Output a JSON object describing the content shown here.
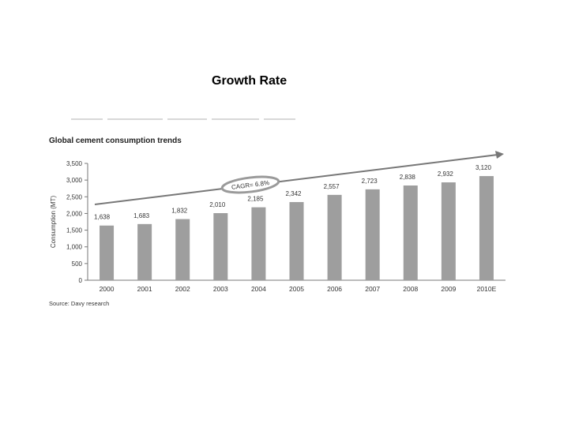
{
  "slide": {
    "title": "Growth Rate"
  },
  "colors": {
    "bar": "#9e9e9e",
    "axis": "#777777",
    "text": "#333333",
    "arrow": "#777777",
    "badge": "#9a9a9a"
  },
  "chart_data": {
    "type": "bar",
    "title": "Global cement consumption trends",
    "ylabel": "Consumption (MT)",
    "xlabel": "",
    "ylim": [
      0,
      3500
    ],
    "yticks": [
      0,
      500,
      1000,
      1500,
      2000,
      2500,
      3000,
      3500
    ],
    "ytick_labels": [
      "0",
      "500",
      "1,000",
      "1,500",
      "2,000",
      "2,500",
      "3,000",
      "3,500"
    ],
    "categories": [
      "2000",
      "2001",
      "2002",
      "2003",
      "2004",
      "2005",
      "2006",
      "2007",
      "2008",
      "2009",
      "2010E"
    ],
    "values": [
      1638,
      1683,
      1832,
      2010,
      2185,
      2342,
      2557,
      2723,
      2838,
      2932,
      3120
    ],
    "value_labels": [
      "1,638",
      "1,683",
      "1,832",
      "2,010",
      "2,185",
      "2,342",
      "2,557",
      "2,723",
      "2,838",
      "2,932",
      "3,120"
    ],
    "annotation": "CAGR= 6.8%",
    "source": "Source: Davy research"
  }
}
